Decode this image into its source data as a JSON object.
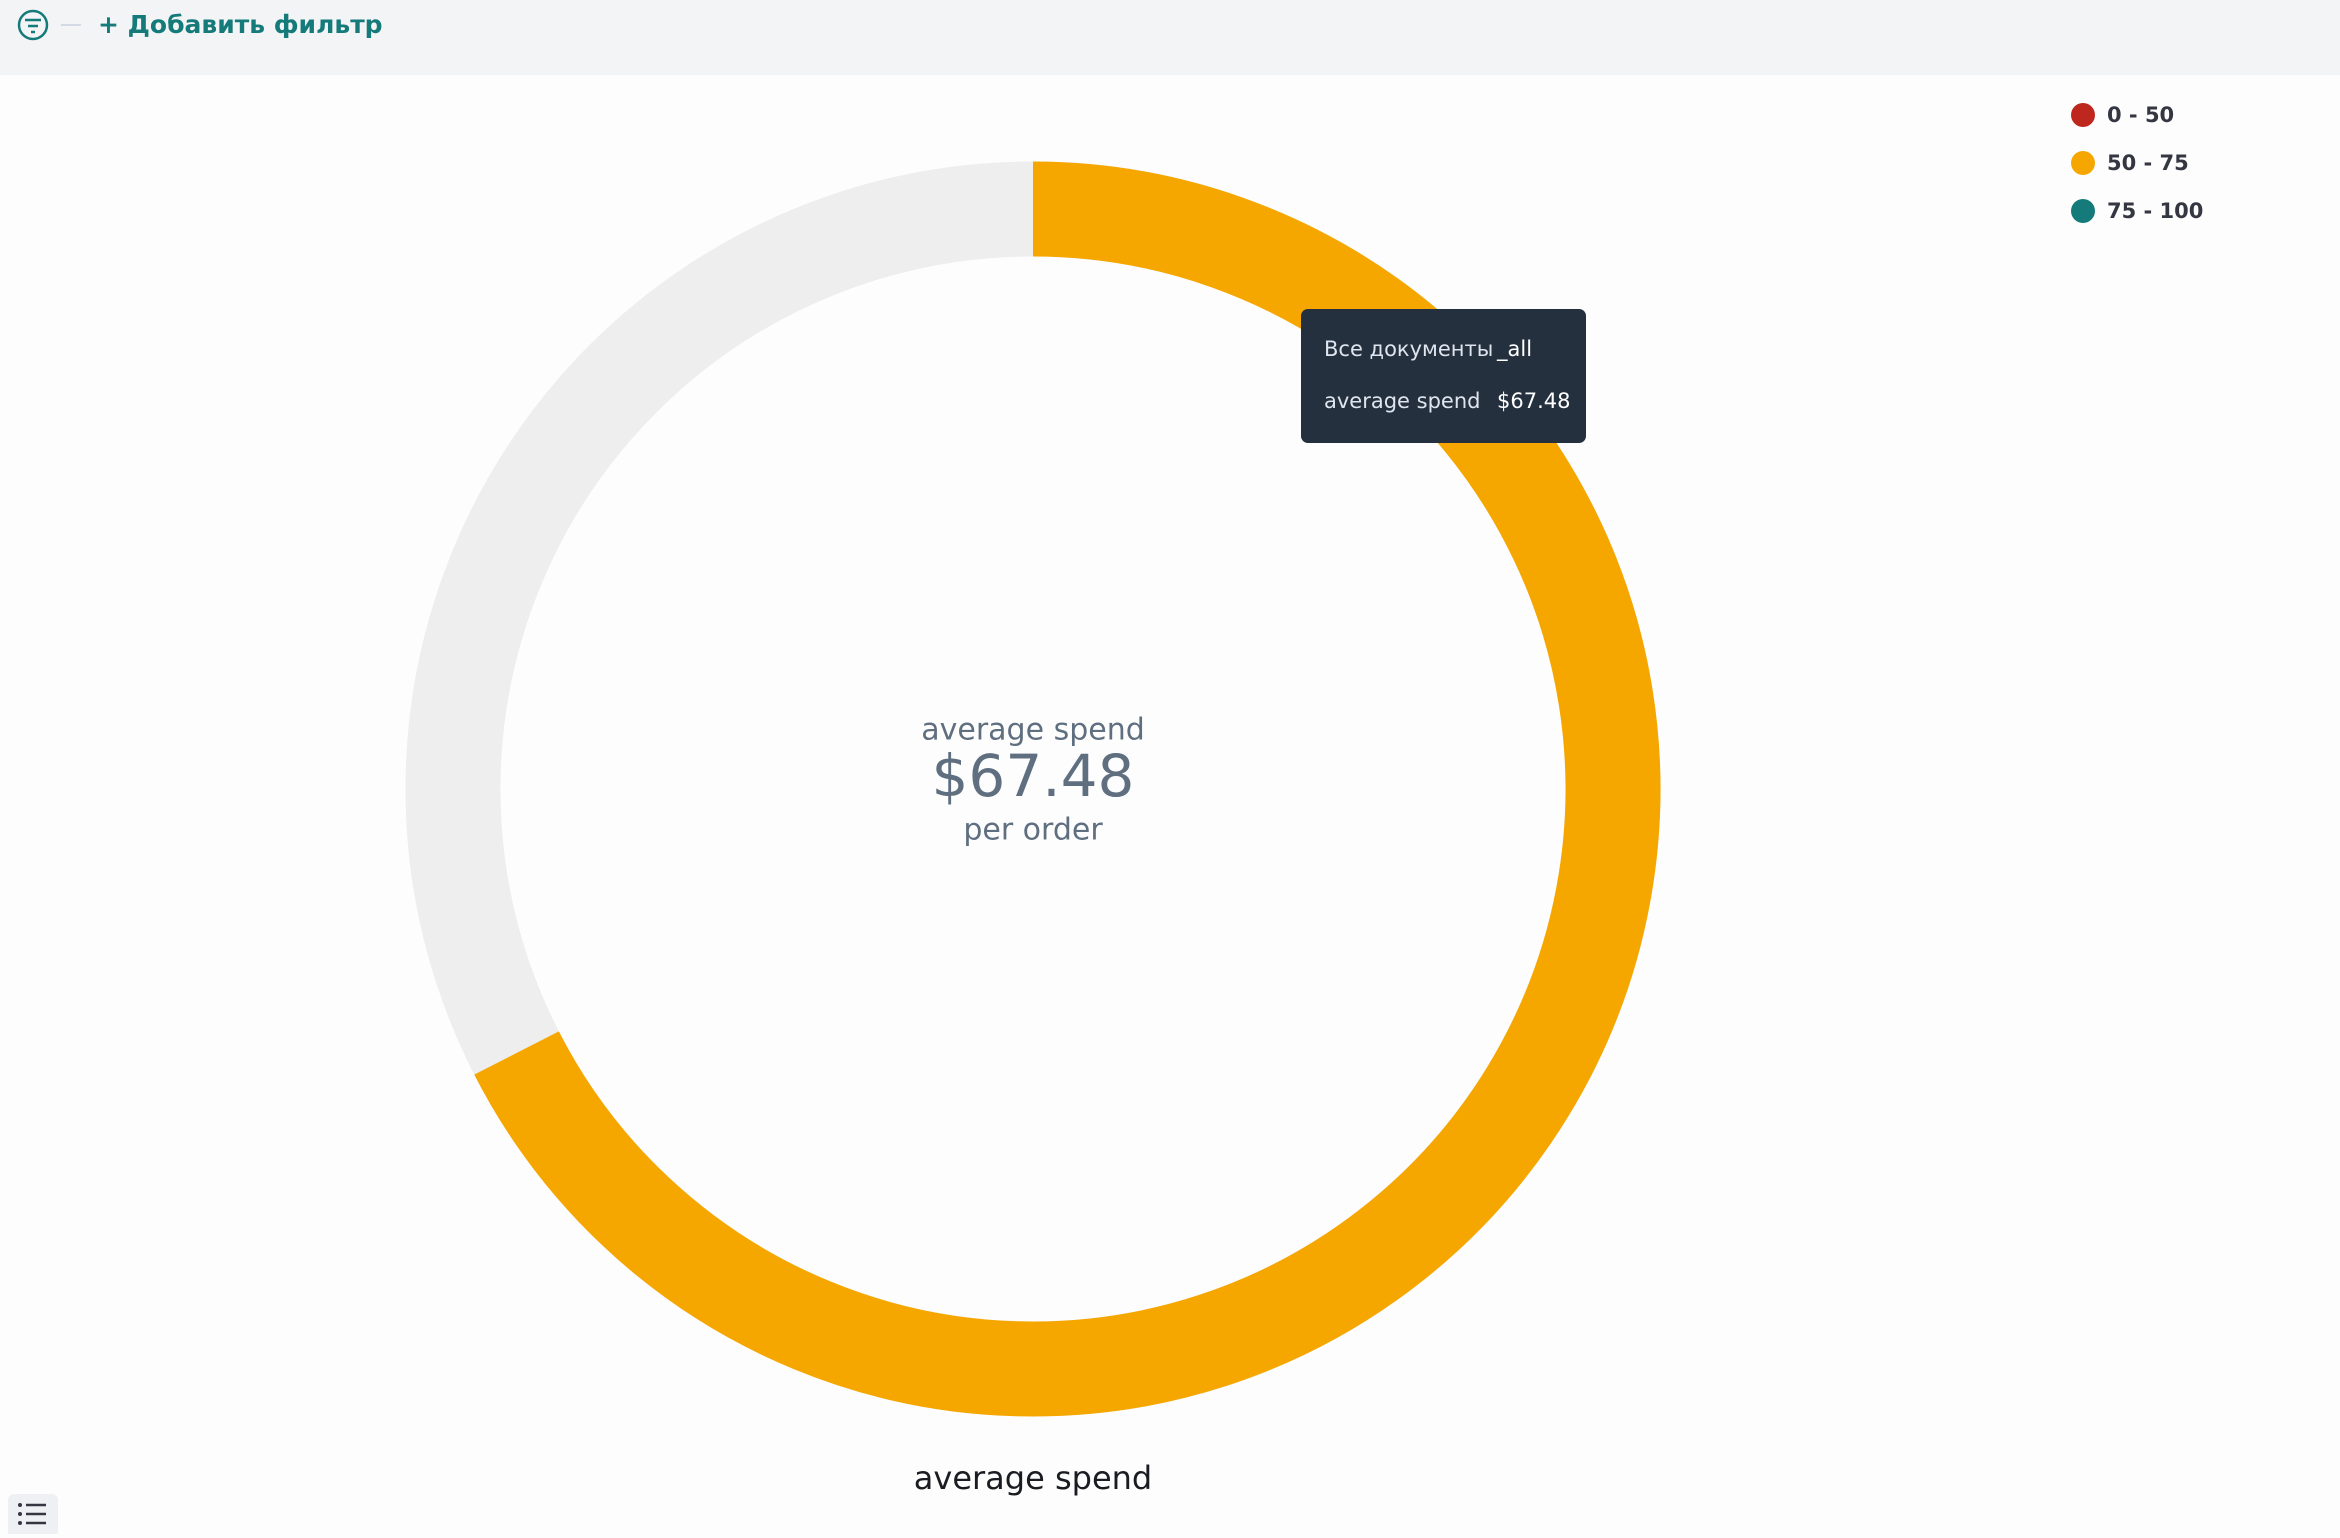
{
  "toolbar": {
    "add_filter": "+ Добавить фильтр"
  },
  "chart_data": {
    "type": "gauge",
    "label": "average spend",
    "value": 67.48,
    "value_label": "$67.48",
    "sublabel": "per order",
    "bottom_label": "average spend",
    "ylim": [
      0,
      100
    ],
    "track_color": "#eeeeee",
    "ranges": [
      {
        "name": "0 - 50",
        "color": "#bd271e",
        "from": 0,
        "to": 50
      },
      {
        "name": "50 - 75",
        "color": "#f5a700",
        "from": 50,
        "to": 75
      },
      {
        "name": "75 - 100",
        "color": "#157a7a",
        "from": 75,
        "to": 100
      }
    ],
    "tooltip": {
      "rows": [
        [
          "Все документы",
          "_all"
        ],
        [
          "average spend",
          "$67.48"
        ]
      ]
    }
  }
}
